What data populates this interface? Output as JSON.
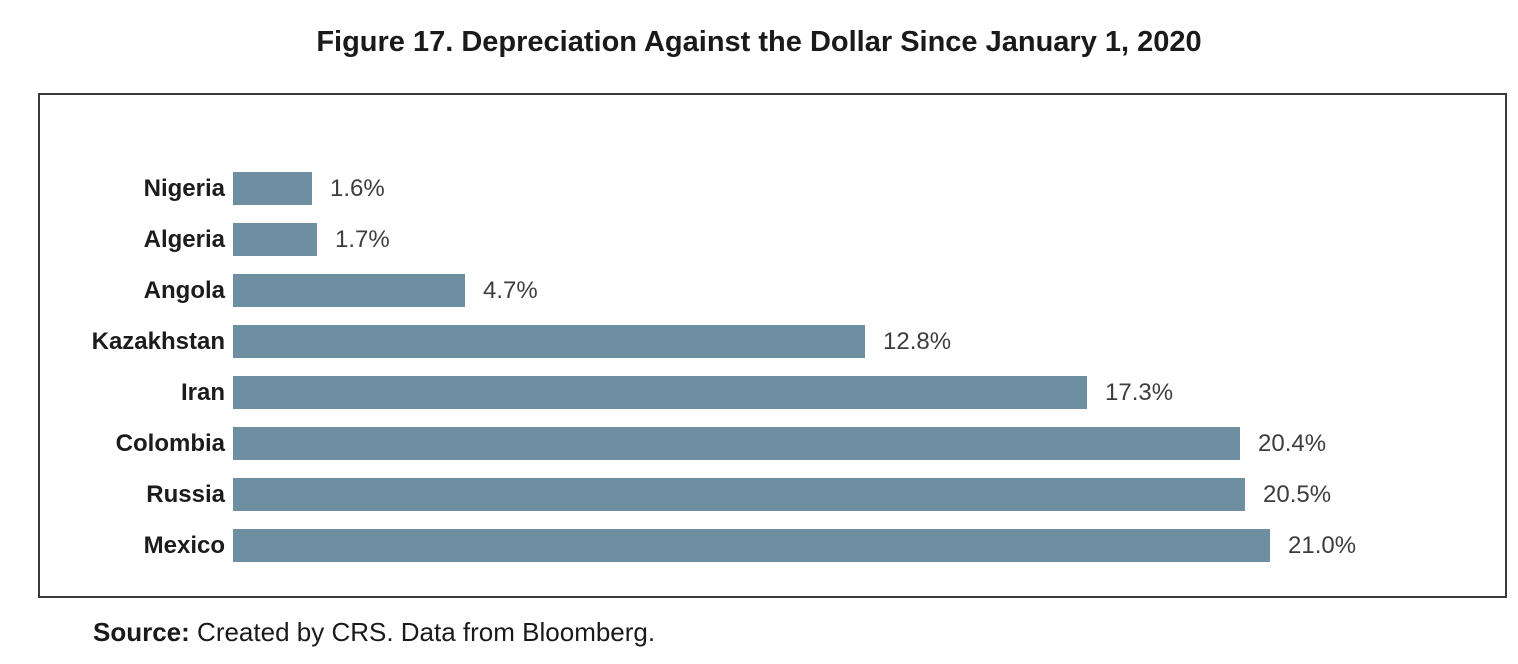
{
  "figure": {
    "title": "Figure 17. Depreciation Against the Dollar Since January 1, 2020",
    "source_label": "Source:",
    "source_text": " Created by CRS. Data from Bloomberg."
  },
  "chart_data": {
    "type": "bar",
    "orientation": "horizontal",
    "title": "Figure 17. Depreciation Against the Dollar Since January 1, 2020",
    "categories": [
      "Nigeria",
      "Algeria",
      "Angola",
      "Kazakhstan",
      "Iran",
      "Colombia",
      "Russia",
      "Mexico"
    ],
    "values": [
      1.6,
      1.7,
      4.7,
      12.8,
      17.3,
      20.4,
      20.5,
      21.0
    ],
    "value_labels": [
      "1.6%",
      "1.7%",
      "4.7%",
      "12.8%",
      "17.3%",
      "20.4%",
      "20.5%",
      "21.0%"
    ],
    "xlabel": "",
    "ylabel": "",
    "xlim": [
      0,
      21.0
    ],
    "grid": false,
    "legend": false,
    "bar_color": "#6e8fa2",
    "frame_border_color": "#3a3a3a",
    "category_label_color": "#1c1c1c",
    "value_label_color": "#3d3d3d",
    "source": "Source: Created by CRS. Data from Bloomberg."
  }
}
